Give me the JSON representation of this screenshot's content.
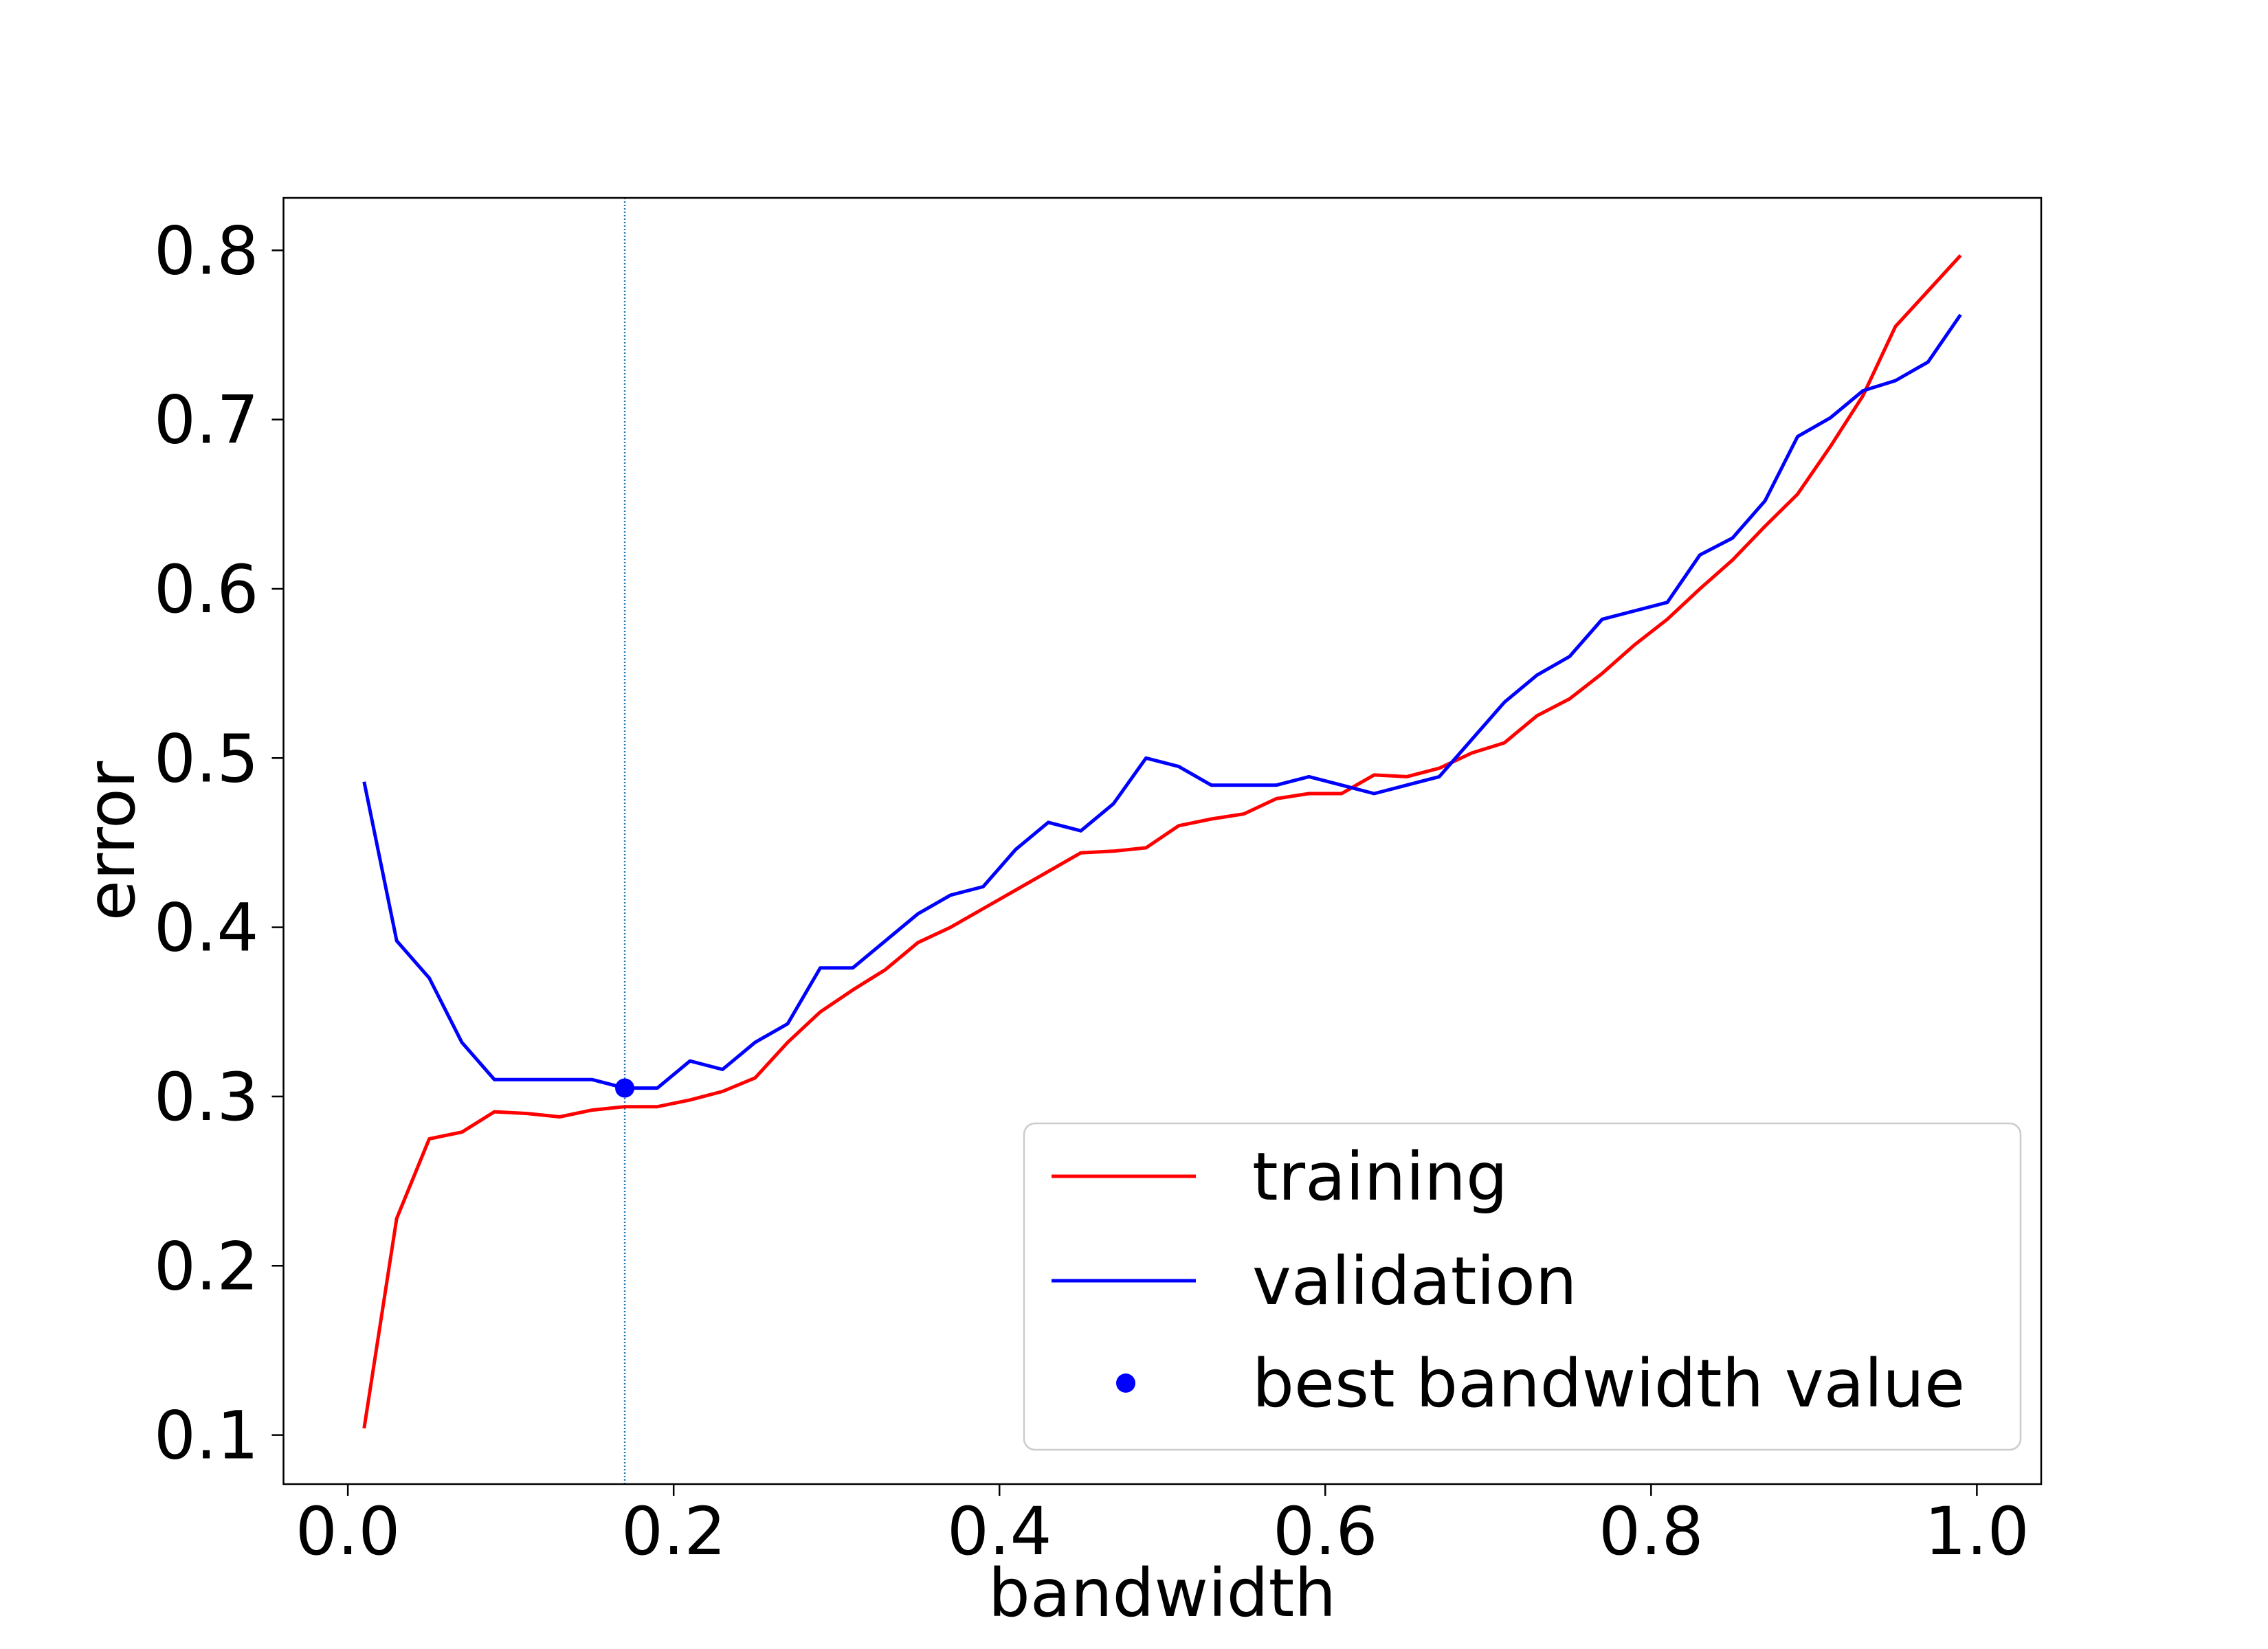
{
  "chart_data": {
    "type": "line",
    "title": "",
    "xlabel": "bandwidth",
    "ylabel": "error",
    "xlim": [
      -0.0395,
      1.0395
    ],
    "ylim": [
      0.071,
      0.831
    ],
    "xticks": [
      0.0,
      0.2,
      0.4,
      0.6,
      0.8,
      1.0
    ],
    "xtick_labels": [
      "0.0",
      "0.2",
      "0.4",
      "0.6",
      "0.8",
      "1.0"
    ],
    "yticks": [
      0.1,
      0.2,
      0.3,
      0.4,
      0.5,
      0.6,
      0.7,
      0.8
    ],
    "ytick_labels": [
      "0.1",
      "0.2",
      "0.3",
      "0.4",
      "0.5",
      "0.6",
      "0.7",
      "0.8"
    ],
    "grid": false,
    "legend_position": "lower-right",
    "x": [
      0.01,
      0.03,
      0.05,
      0.07,
      0.09,
      0.11,
      0.13,
      0.15,
      0.17,
      0.19,
      0.21,
      0.23,
      0.25,
      0.27,
      0.29,
      0.31,
      0.33,
      0.35,
      0.37,
      0.39,
      0.41,
      0.43,
      0.45,
      0.47,
      0.49,
      0.51,
      0.53,
      0.55,
      0.57,
      0.59,
      0.61,
      0.63,
      0.65,
      0.67,
      0.69,
      0.71,
      0.73,
      0.75,
      0.77,
      0.79,
      0.81,
      0.83,
      0.85,
      0.87,
      0.89,
      0.91,
      0.93,
      0.95,
      0.97,
      0.99
    ],
    "series": [
      {
        "name": "training",
        "color": "#ff0000",
        "values": [
          0.104,
          0.228,
          0.275,
          0.279,
          0.291,
          0.29,
          0.288,
          0.292,
          0.294,
          0.294,
          0.298,
          0.303,
          0.311,
          0.332,
          0.35,
          0.363,
          0.375,
          0.391,
          0.4,
          0.411,
          0.422,
          0.433,
          0.444,
          0.445,
          0.447,
          0.46,
          0.464,
          0.467,
          0.476,
          0.479,
          0.479,
          0.49,
          0.489,
          0.494,
          0.503,
          0.509,
          0.525,
          0.535,
          0.55,
          0.567,
          0.582,
          0.6,
          0.617,
          0.637,
          0.656,
          0.684,
          0.714,
          0.755,
          0.776,
          0.797
        ]
      },
      {
        "name": "validation",
        "color": "#0000ff",
        "values": [
          0.486,
          0.392,
          0.37,
          0.332,
          0.31,
          0.31,
          0.31,
          0.31,
          0.305,
          0.305,
          0.321,
          0.316,
          0.332,
          0.343,
          0.376,
          0.376,
          0.392,
          0.408,
          0.419,
          0.424,
          0.446,
          0.462,
          0.457,
          0.473,
          0.5,
          0.495,
          0.484,
          0.484,
          0.484,
          0.489,
          0.484,
          0.479,
          0.484,
          0.489,
          0.511,
          0.533,
          0.549,
          0.56,
          0.582,
          0.587,
          0.592,
          0.62,
          0.63,
          0.652,
          0.69,
          0.701,
          0.717,
          0.723,
          0.734,
          0.762
        ]
      }
    ],
    "best_point": {
      "name": "best bandwidth value",
      "x": 0.17,
      "y": 0.305,
      "color": "#0000ff"
    },
    "vline": {
      "x": 0.17,
      "style": "dotted",
      "color": "#1f77b4"
    }
  }
}
